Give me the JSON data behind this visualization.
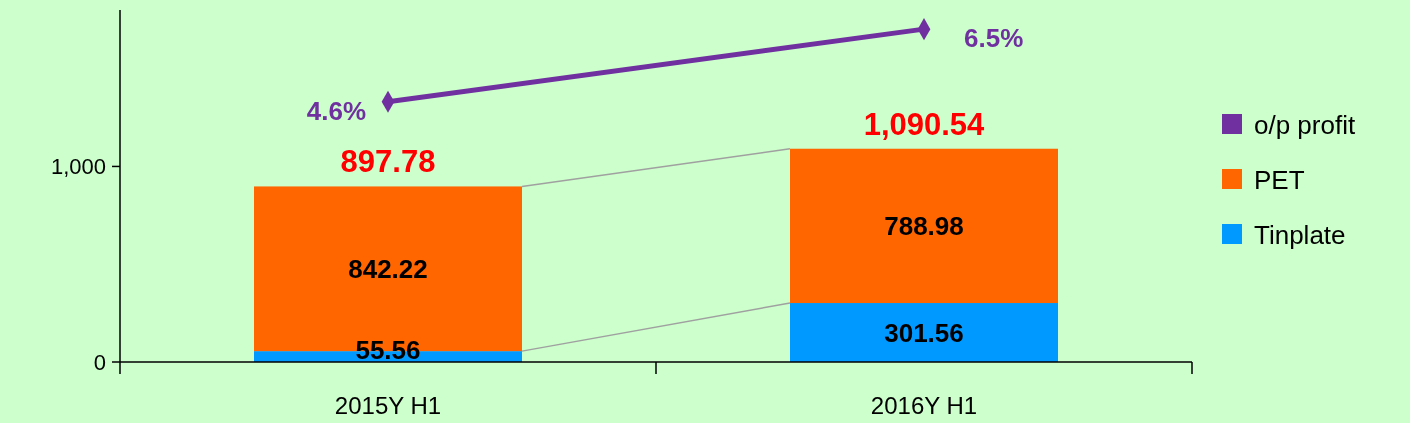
{
  "chart_data": {
    "type": "bar",
    "stacked": true,
    "categories": [
      "2015Y H1",
      "2016Y H1"
    ],
    "series": [
      {
        "name": "Tinplate",
        "color": "#0099ff",
        "values": [
          55.56,
          301.56
        ]
      },
      {
        "name": "PET",
        "color": "#ff6600",
        "values": [
          842.22,
          788.98
        ]
      },
      {
        "name": "o/p profit",
        "type": "line",
        "axis": "y2",
        "color": "#7030a0",
        "values": [
          4.6,
          6.5
        ],
        "value_labels": [
          "4.6%",
          "6.5%"
        ]
      }
    ],
    "ylim": [
      0,
      1800
    ],
    "yticks": [
      0,
      {
        "value": 1000,
        "label": "1,000"
      }
    ],
    "y2lim": [
      -2.2,
      7
    ],
    "tick_labels": [
      "x",
      "y"
    ],
    "data_labels": true,
    "totals": [
      "897.78",
      "1,090.54"
    ],
    "legend": "right",
    "marker": "diamond"
  }
}
